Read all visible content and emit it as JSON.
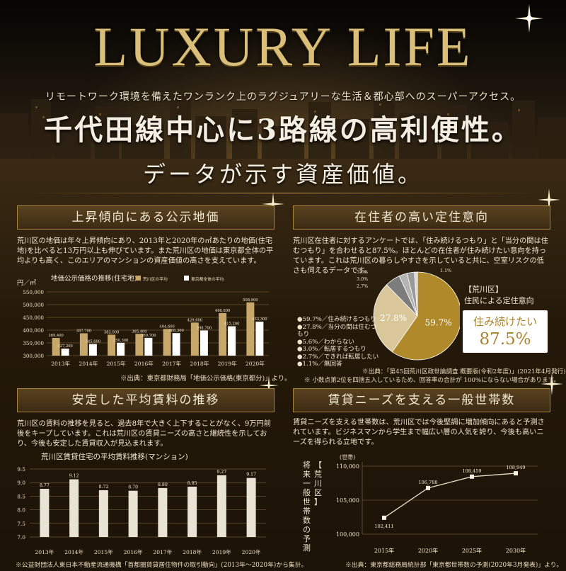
{
  "hero": {
    "title": "LUXURY LIFE",
    "subtitle": "リモートワーク環境を備えたワンランク上のラグジュアリーな生活＆都心部へのスーパーアクセス。",
    "headline": "千代田線中心に3路線の高利便性。"
  },
  "band_title": "データが示す資産価値。",
  "sections": {
    "land": {
      "heading": "上昇傾向にある公示地価",
      "body": "荒川区の地価は年々上昇傾向にあり、2013年と2020年の㎡あたりの地価(住宅地)を比べると13万円以上も伸びています。また荒川区の地価は東京都全体の平均よりも高く、このエリアのマンションの資産価値の高さを支えています。",
      "note": "※出典：東京都財務局「地価公示価格(東京都分)」より。"
    },
    "residence": {
      "heading": "在住者の高い定住意向",
      "body": "荒川区在住者に対するアンケートでは、「住み続けるつもり」と「当分の間は住むつもり」を合わせると87.5%。ほとんどの在住者が住み続けたい意向を持っています。これは荒川区の暮らしやすさを示していると共に、空室リスクの低さも伺えるデータです。",
      "note1": "※出典：「第45回荒川区政世論調査 概要版(令和2年度)」(2021年4月発行)より。",
      "note2": "※ 小数点第2位を四捨五入しているため、回答率の合計が 100%にならない場合があります。",
      "callout_label1": "【荒川区】",
      "callout_label2": "住民による定住意向",
      "callout_tag": "住み続けたい",
      "callout_value": "87.5%"
    },
    "rent": {
      "heading": "安定した平均賃料の推移",
      "body": "荒川区の賃料の推移を見ると、過去8年で大きく上下することがなく、9万円前後をキープしています。これは荒川区の賃貸ニーズの高さと継続性を示しており、今後も安定した賃貸収入が見込まれます。",
      "note": "※公益財団法人東日本不動産流通機構「首都圏賃貸居住物件の取引動向」(2013年〜2020年)から集計。"
    },
    "households": {
      "heading": "賃貸ニーズを支える一般世帯数",
      "body": "賃貸ニーズを支える世帯数は、荒川区では今後堅調に増加傾向にあると予測されています。ビジネスマンから学生まで幅広い層の人気を誇り、今後も高いニーズを得られる立地です。",
      "note": "※出典：東京都総務局統計部「東京都世帯数の予測(2020年3月発表)」より。",
      "vlabel1": "【荒川区】",
      "vlabel2": "将来一般世帯数の予測"
    }
  },
  "chart_data": [
    {
      "type": "bar",
      "title": "地価公示価格の推移(住宅地)",
      "ylabel": "円／㎡",
      "categories": [
        "2013年",
        "2014年",
        "2015年",
        "2016年",
        "2017年",
        "2018年",
        "2019年",
        "2020年"
      ],
      "ylim": [
        300000,
        550000
      ],
      "yticks": [
        "300,000",
        "350,000",
        "400,000",
        "450,000",
        "500,000",
        "550,000"
      ],
      "legend_position": "top",
      "series": [
        {
          "name": "荒川区の平均",
          "values": [
            369400,
            387700,
            382000,
            385400,
            404600,
            429600,
            466800,
            508900
          ],
          "labels": [
            "369,400",
            "387,700",
            "382,000",
            "385,400",
            "404,600",
            "429,600",
            "466,800",
            "508,900"
          ],
          "color": "#c8a86a"
        },
        {
          "name": "東京都全体の平均",
          "values": [
            327200,
            345600,
            350300,
            369700,
            388300,
            398700,
            415200,
            433300
          ],
          "labels": [
            "327,200",
            "345,600",
            "350,300",
            "369,700",
            "388,300",
            "398,700",
            "415,200",
            "433,300"
          ],
          "color": "#ffffff"
        }
      ]
    },
    {
      "type": "pie",
      "series": [
        {
          "name": "住み続けるつもり",
          "value": 59.7,
          "label": "59.7%",
          "legend": "●59.7%／住み続けるつもり",
          "color": "#b08a2a"
        },
        {
          "name": "当分の間は住むつもり",
          "value": 27.8,
          "label": "27.8%",
          "legend": "●27.8%／当分の間は住むつもり",
          "color": "#d9c79a"
        },
        {
          "name": "わからない",
          "value": 5.6,
          "label": "5.6%",
          "legend": "●5.6%／わからない",
          "color": "#7c7c7c"
        },
        {
          "name": "転居するつもり",
          "value": 3.0,
          "label": "3.0%",
          "legend": "●3.0%／転居するつもり",
          "color": "#b4b4b4"
        },
        {
          "name": "できれば転居したい",
          "value": 2.7,
          "label": "2.7%",
          "legend": "●2.7%／できれば転居したい",
          "color": "#9a9a9a"
        },
        {
          "name": "無回答",
          "value": 1.1,
          "label": "1.1%",
          "legend": "●1.1%／無回答",
          "color": "#d8d8d8"
        }
      ]
    },
    {
      "type": "bar",
      "title": "荒川区賃貸住宅の平均賃料推移(マンション)",
      "categories": [
        "2013年",
        "2014年",
        "2015年",
        "2016年",
        "2017年",
        "2018年",
        "2019年",
        "2020年"
      ],
      "ylim": [
        7.0,
        9.5
      ],
      "yticks": [
        "7.0",
        "7.5",
        "8.0",
        "8.5",
        "9.0",
        "9.5"
      ],
      "series": [
        {
          "values": [
            8.77,
            9.12,
            8.72,
            8.7,
            8.8,
            8.85,
            9.27,
            9.17
          ],
          "labels": [
            "8.77",
            "9.12",
            "8.72",
            "8.70",
            "8.80",
            "8.85",
            "9.27",
            "9.17"
          ],
          "color": "#e9e3d3"
        }
      ]
    },
    {
      "type": "line",
      "ylabel": "(世帯)",
      "categories": [
        "2015年",
        "2020年",
        "2025年",
        "2030年"
      ],
      "ylim": [
        100000,
        110000
      ],
      "yticks": [
        "100,000",
        "105,000",
        "110,000"
      ],
      "series": [
        {
          "values": [
            102411,
            106788,
            108459,
            108949
          ],
          "labels": [
            "102,411",
            "106,788",
            "108,459",
            "108,949"
          ],
          "color": "#e6dcc6"
        }
      ]
    }
  ]
}
